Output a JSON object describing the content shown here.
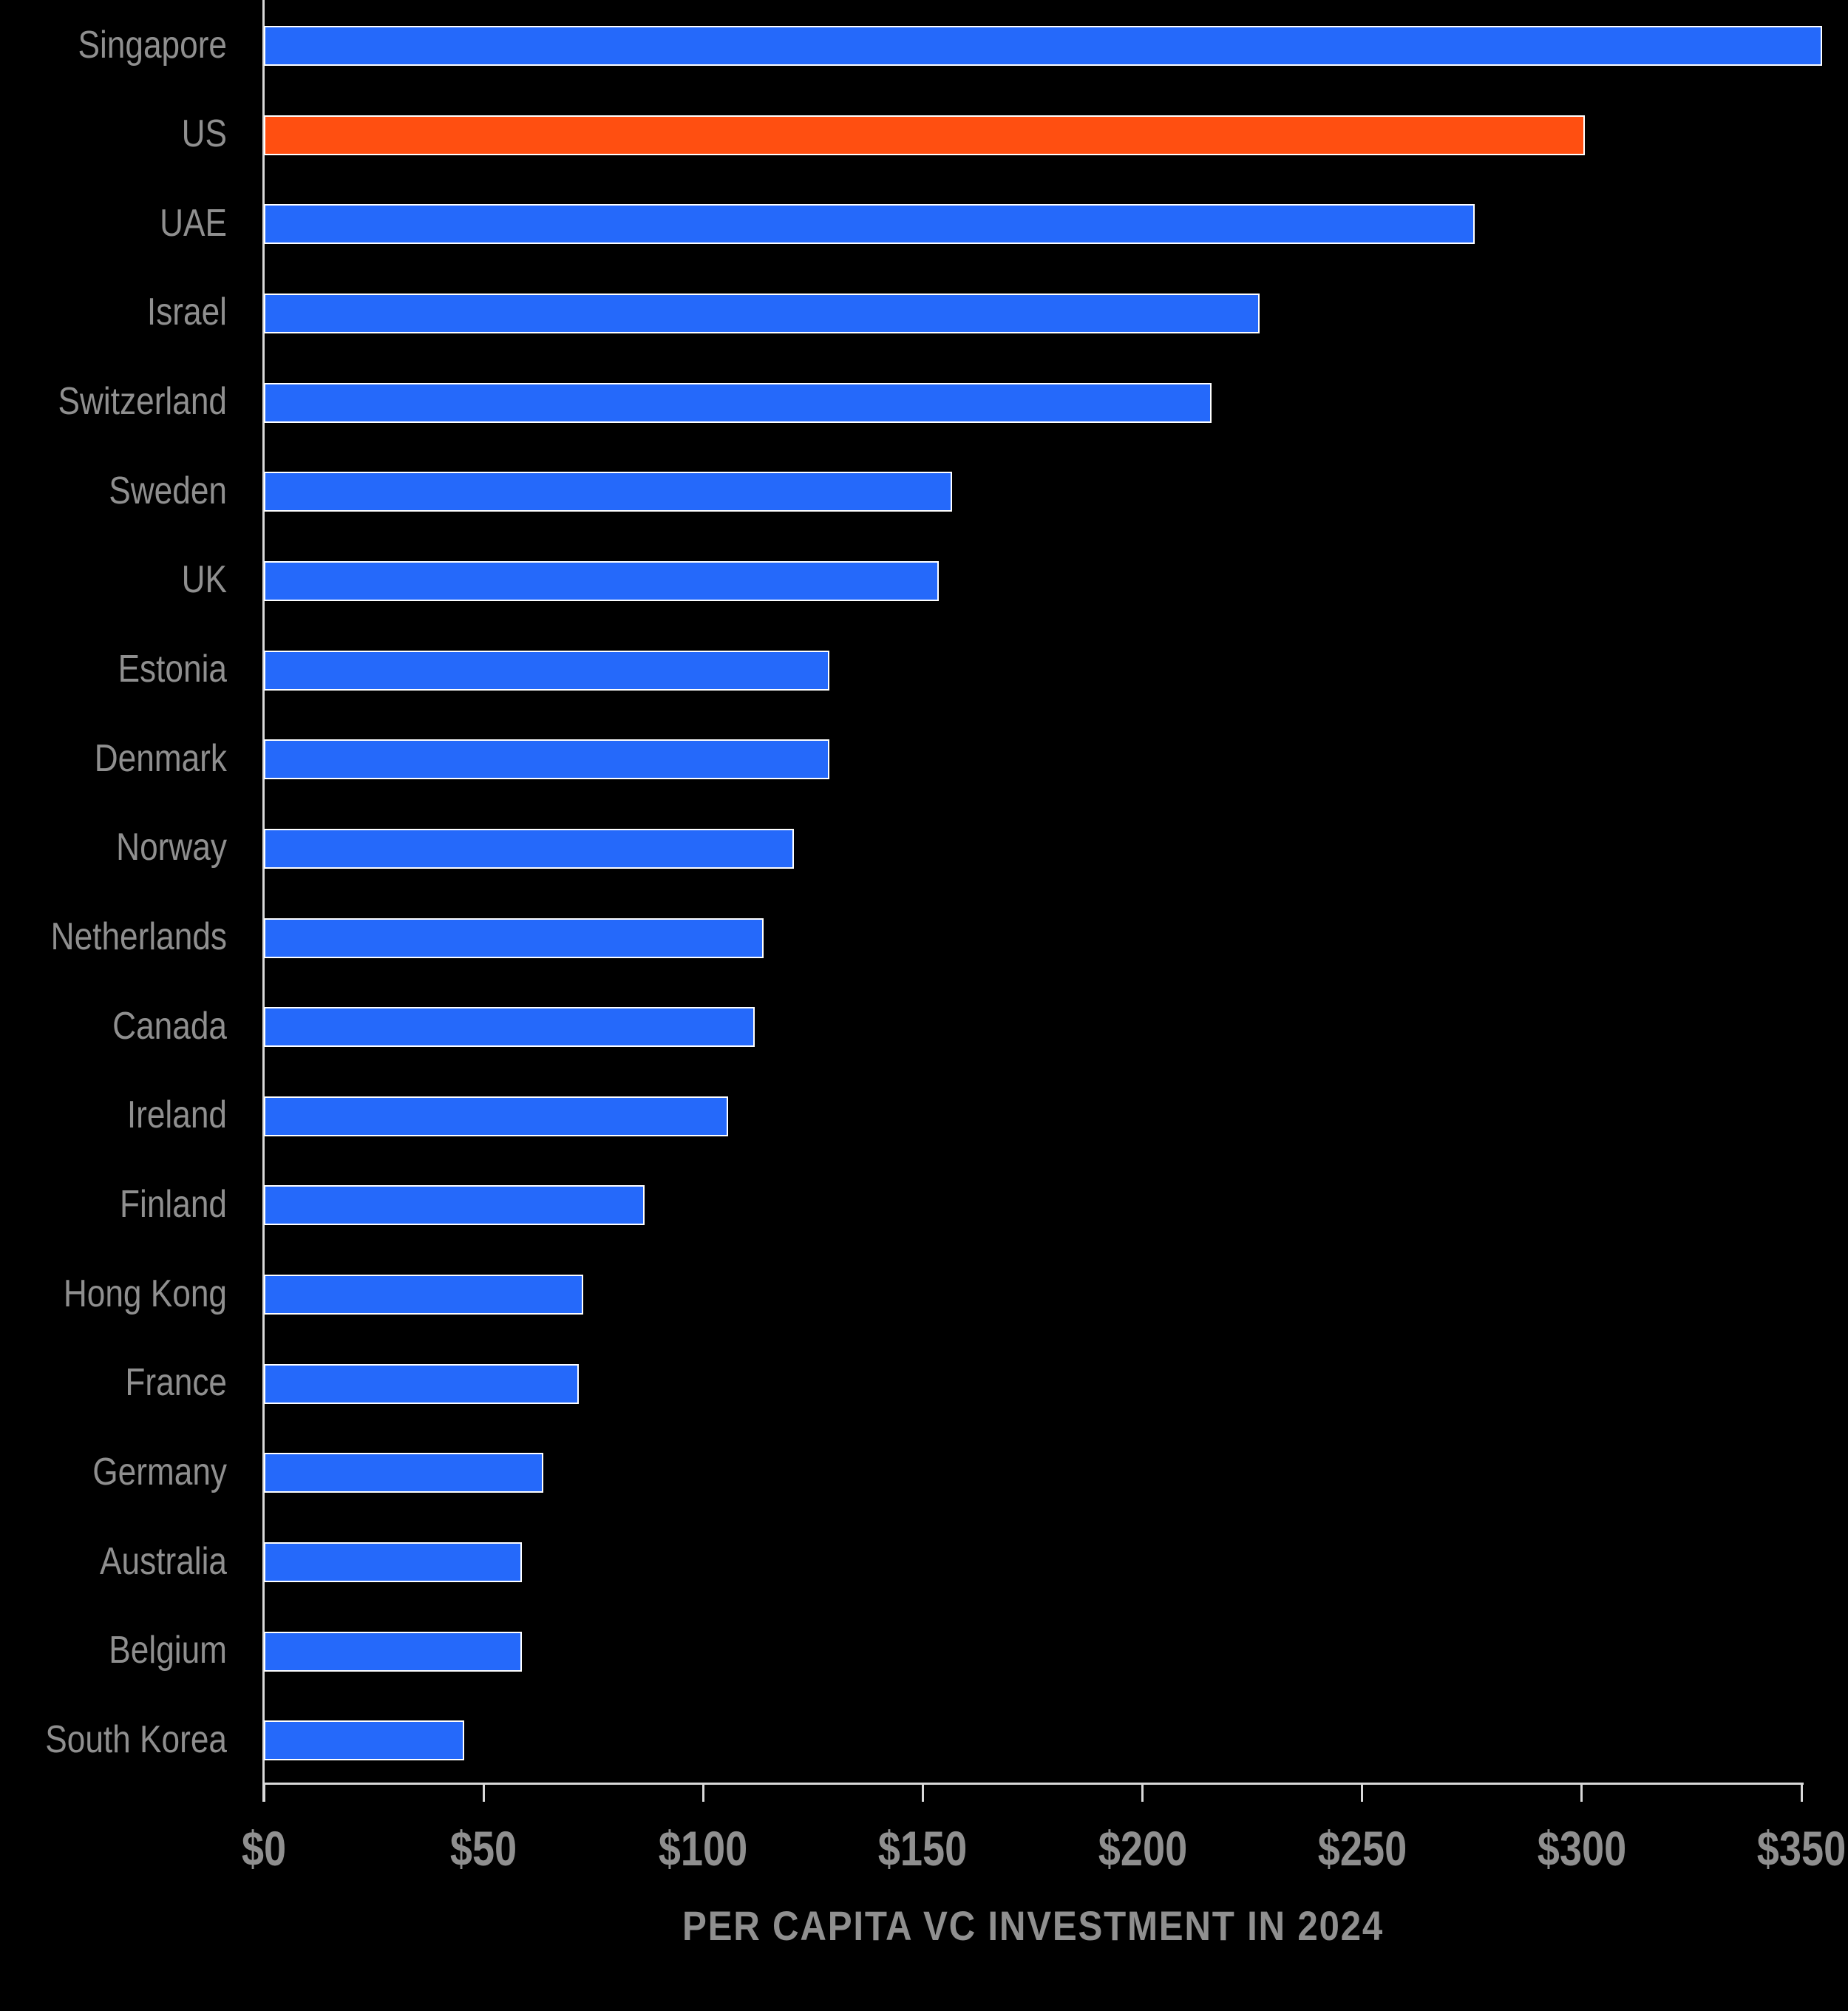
{
  "chart_data": {
    "type": "bar",
    "orientation": "horizontal",
    "xlabel": "PER CAPITA VC INVESTMENT IN 2024",
    "ylabel": "",
    "xlim": [
      0,
      350
    ],
    "x_ticks": [
      "$0",
      "$50",
      "$100",
      "$150",
      "$200",
      "$250",
      "$300",
      "$350"
    ],
    "x_tick_values": [
      0,
      50,
      100,
      150,
      200,
      250,
      300,
      350
    ],
    "grid": false,
    "legend": false,
    "categories": [
      "Singapore",
      "US",
      "UAE",
      "Israel",
      "Switzerland",
      "Sweden",
      "UK",
      "Estonia",
      "Denmark",
      "Norway",
      "Netherlands",
      "Canada",
      "Ireland",
      "Finland",
      "Hong Kong",
      "France",
      "Germany",
      "Australia",
      "Belgium",
      "South Korea"
    ],
    "values": [
      354,
      300,
      275,
      226,
      215,
      156,
      153,
      128,
      128,
      120,
      113,
      111,
      105,
      86,
      72,
      71,
      63,
      58,
      58,
      45
    ],
    "highlight_category": "US",
    "colors": {
      "bar": "#2569FA",
      "highlight": "#FF4F11",
      "background": "#000000",
      "axis": "#D9D9D9",
      "text": "#8F8F8F",
      "bar_border": "#FFFFFF"
    }
  }
}
